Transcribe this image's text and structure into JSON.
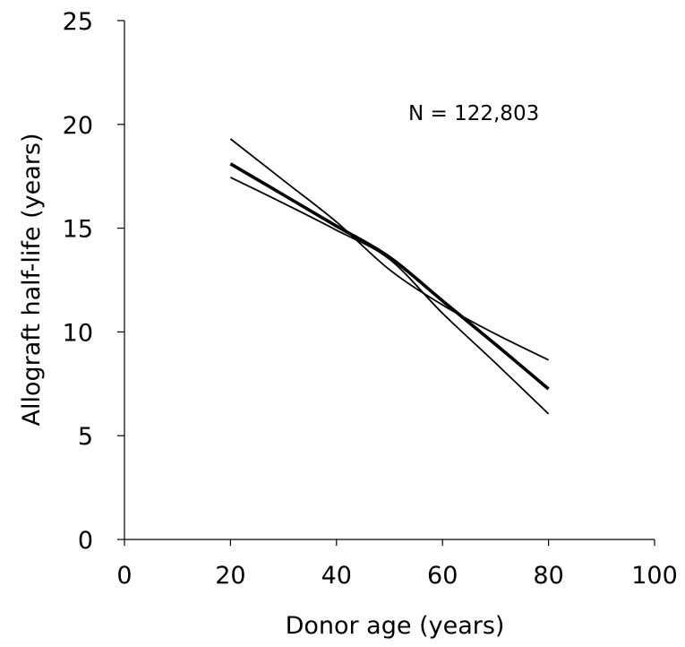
{
  "chart_data": {
    "type": "line",
    "title": "",
    "xlabel": "Donor age (years)",
    "ylabel": "Allograft half-life (years)",
    "xlim": [
      0,
      100
    ],
    "ylim": [
      0,
      25
    ],
    "xticks": [
      0,
      20,
      40,
      60,
      80,
      100
    ],
    "yticks": [
      0,
      5,
      10,
      15,
      20,
      25
    ],
    "grid": false,
    "annotation": "N = 122,803",
    "series": [
      {
        "role": "estimate",
        "x": [
          20,
          30,
          40,
          50,
          60,
          70,
          80
        ],
        "y": [
          18.1,
          16.6,
          15.1,
          13.6,
          11.5,
          9.4,
          7.25
        ]
      },
      {
        "role": "upper-bound",
        "x": [
          20,
          30,
          40,
          50,
          60,
          70,
          80
        ],
        "y": [
          19.3,
          17.3,
          15.3,
          13.0,
          11.3,
          9.9,
          8.65
        ]
      },
      {
        "role": "lower-bound",
        "x": [
          20,
          30,
          40,
          50,
          60,
          70,
          80
        ],
        "y": [
          17.45,
          16.2,
          14.9,
          13.5,
          10.9,
          8.5,
          6.05
        ]
      }
    ]
  }
}
